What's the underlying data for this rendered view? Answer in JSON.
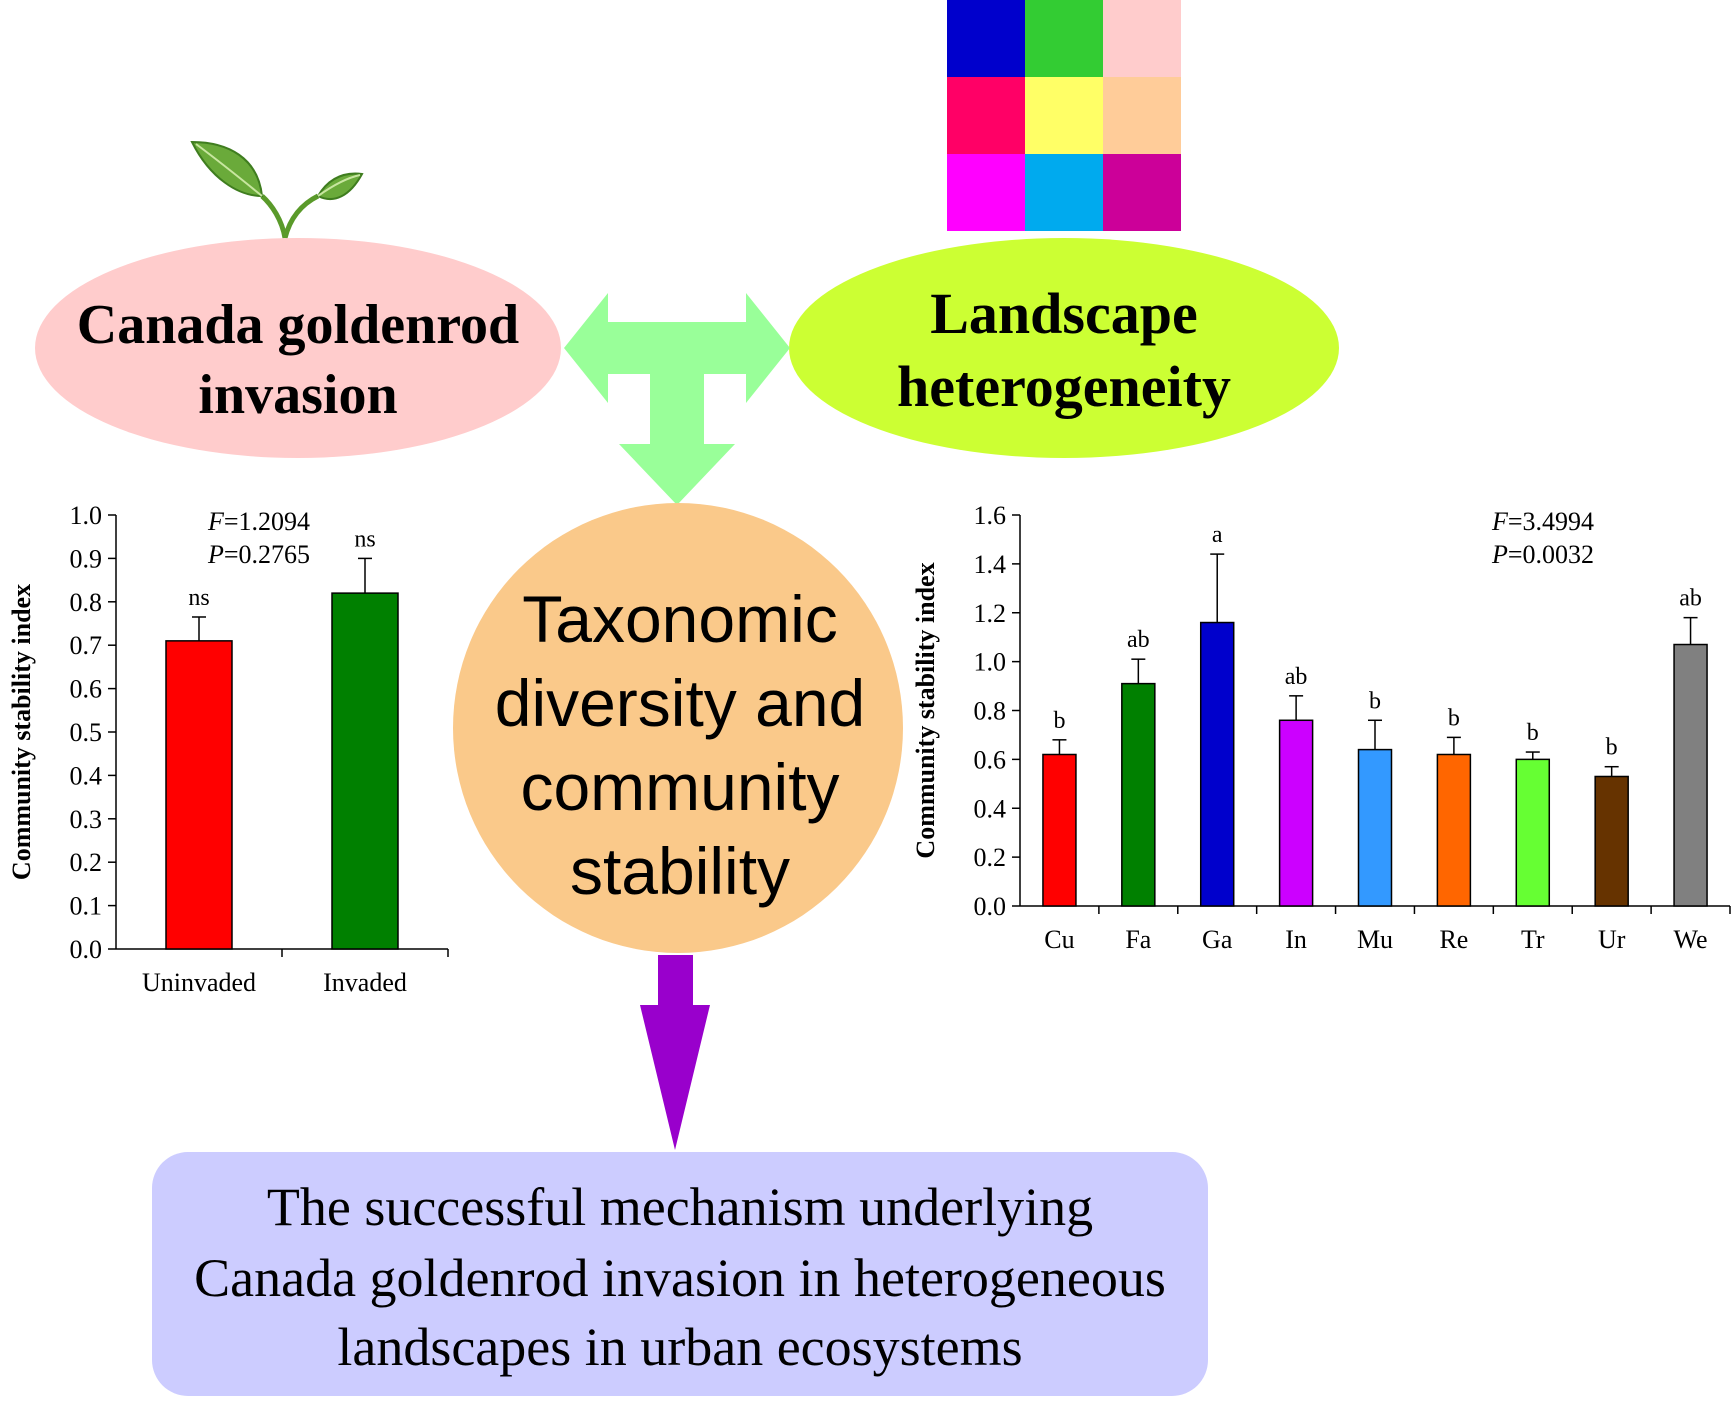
{
  "nodes": {
    "invasion": {
      "lines": [
        "Canada goldenrod",
        "invasion"
      ],
      "fill": "#ffcccc"
    },
    "landscape": {
      "lines": [
        "Landscape",
        "heterogeneity"
      ],
      "fill": "#ccff33"
    },
    "diversity": {
      "lines": [
        "Taxonomic",
        "diversity and",
        "community",
        "stability"
      ],
      "fill": "#fac98a"
    },
    "conclusion": {
      "lines": [
        "The successful mechanism underlying",
        "Canada goldenrod invasion in heterogeneous",
        "landscapes in urban ecosystems"
      ],
      "fill": "#ccccff"
    }
  },
  "colors": {
    "double_arrow": "#99ff99",
    "down_arrow": "#9900cc",
    "leaf": "#6aaa3a",
    "landscape_grid": [
      "#0000cc",
      "#33cc33",
      "#ffcccc",
      "#ff0066",
      "#ffff66",
      "#ffcc99",
      "#ff00ff",
      "#00aaee",
      "#cc0099"
    ]
  },
  "chart_data": [
    {
      "type": "bar",
      "ylabel": "Community stability index",
      "ylim": [
        0.0,
        1.0
      ],
      "yticks": [
        "0.0",
        "0.1",
        "0.2",
        "0.3",
        "0.4",
        "0.5",
        "0.6",
        "0.7",
        "0.8",
        "0.9",
        "1.0"
      ],
      "categories": [
        "Uninvaded",
        "Invaded"
      ],
      "values": [
        0.71,
        0.82
      ],
      "errors": [
        0.055,
        0.08
      ],
      "letters": [
        "ns",
        "ns"
      ],
      "colors": [
        "#ff0000",
        "#008000"
      ],
      "stats": [
        "F=1.2094",
        "P=0.2765"
      ],
      "grid": false
    },
    {
      "type": "bar",
      "ylabel": "Community stability index",
      "ylim": [
        0.0,
        1.6
      ],
      "yticks": [
        "0.0",
        "0.2",
        "0.4",
        "0.6",
        "0.8",
        "1.0",
        "1.2",
        "1.4",
        "1.6"
      ],
      "categories": [
        "Cu",
        "Fa",
        "Ga",
        "In",
        "Mu",
        "Re",
        "Tr",
        "Ur",
        "We"
      ],
      "values": [
        0.62,
        0.91,
        1.16,
        0.76,
        0.64,
        0.62,
        0.6,
        0.53,
        1.07
      ],
      "errors": [
        0.06,
        0.1,
        0.28,
        0.1,
        0.12,
        0.07,
        0.03,
        0.04,
        0.11
      ],
      "letters": [
        "b",
        "ab",
        "a",
        "ab",
        "b",
        "b",
        "b",
        "b",
        "ab"
      ],
      "colors": [
        "#ff0000",
        "#008000",
        "#0000cc",
        "#cc00ff",
        "#3399ff",
        "#ff6600",
        "#66ff33",
        "#663300",
        "#808080"
      ],
      "stats": [
        "F=3.4994",
        "P=0.0032"
      ],
      "grid": false
    }
  ]
}
